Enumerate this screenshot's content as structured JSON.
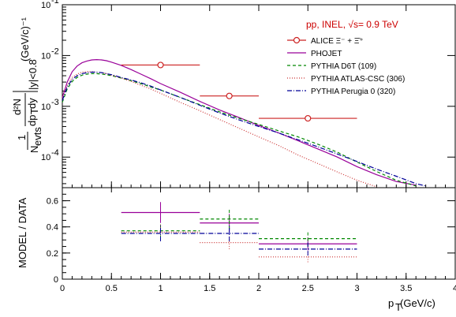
{
  "chart_data": [
    {
      "panel": "top",
      "type": "line",
      "scale": "log",
      "annotation": "pp, INEL, √s= 0.9 TeV",
      "ylabel_frac": "1/Nevts d²N/dpTdy",
      "ylabel_sub": "|y|<0.8",
      "ylabel_unit": "(GeV/c)⁻¹",
      "xlim": [
        0,
        4
      ],
      "ylim": [
        2.5e-05,
        0.1
      ],
      "xticks": [
        0,
        0.5,
        1,
        1.5,
        2,
        2.5,
        3,
        3.5,
        4
      ],
      "yticks": [
        {
          "v": 0.1,
          "base": "10",
          "exp": "-1"
        },
        {
          "v": 0.01,
          "base": "10",
          "exp": "-2"
        },
        {
          "v": 0.001,
          "base": "10",
          "exp": "-3"
        },
        {
          "v": 0.0001,
          "base": "10",
          "exp": "-4"
        }
      ],
      "legend": {
        "position": "top-right",
        "items": [
          {
            "name": "ALICE Ξ⁻ + Ξ̄⁺",
            "color": "#cc2222",
            "style": "solid-marker"
          },
          {
            "name": "PHOJET",
            "color": "#990099",
            "style": "solid"
          },
          {
            "name": "PYTHIA D6T (109)",
            "color": "#008800",
            "style": "dashed"
          },
          {
            "name": "PYTHIA ATLAS-CSC (306)",
            "color": "#cc3333",
            "style": "dotted"
          },
          {
            "name": "PYTHIA Perugia 0 (320)",
            "color": "#000099",
            "style": "dashdot"
          }
        ]
      },
      "data_points": [
        {
          "x": 1.0,
          "xlow": 0.6,
          "xhigh": 1.4,
          "y": 0.0065
        },
        {
          "x": 1.7,
          "xlow": 1.4,
          "xhigh": 2.0,
          "y": 0.0016
        },
        {
          "x": 2.5,
          "xlow": 2.0,
          "xhigh": 3.0,
          "y": 0.00058
        }
      ],
      "series": [
        {
          "name": "PHOJET",
          "color": "#990099",
          "dash": "",
          "x": [
            0,
            0.05,
            0.1,
            0.15,
            0.2,
            0.25,
            0.3,
            0.35,
            0.4,
            0.45,
            0.5,
            0.6,
            0.7,
            0.8,
            0.9,
            1.0,
            1.2,
            1.4,
            1.6,
            1.8,
            2.0,
            2.2,
            2.4,
            2.6,
            2.8,
            3.0,
            3.2,
            3.4,
            3.6
          ],
          "y": [
            0.0015,
            0.003,
            0.0048,
            0.0062,
            0.0072,
            0.0078,
            0.0082,
            0.0083,
            0.0082,
            0.0079,
            0.0074,
            0.0064,
            0.0053,
            0.0043,
            0.0035,
            0.0028,
            0.0019,
            0.00125,
            0.00085,
            0.0006,
            0.00042,
            0.0003,
            0.00021,
            0.000145,
            0.0001,
            6.5e-05,
            4.5e-05,
            3.3e-05,
            2.8e-05
          ]
        },
        {
          "name": "PYTHIA D6T (109)",
          "color": "#008800",
          "dash": "4,3",
          "x": [
            0,
            0.05,
            0.1,
            0.15,
            0.2,
            0.25,
            0.3,
            0.35,
            0.4,
            0.45,
            0.5,
            0.6,
            0.7,
            0.8,
            0.9,
            1.0,
            1.2,
            1.4,
            1.6,
            1.8,
            2.0,
            2.2,
            2.4,
            2.6,
            2.8,
            3.0,
            3.2,
            3.4,
            3.6
          ],
          "y": [
            0.0012,
            0.0022,
            0.0031,
            0.0037,
            0.0041,
            0.0043,
            0.0044,
            0.0044,
            0.0043,
            0.0042,
            0.004,
            0.0036,
            0.0032,
            0.0028,
            0.0024,
            0.0021,
            0.0015,
            0.00108,
            0.00078,
            0.00058,
            0.00044,
            0.00033,
            0.00025,
            0.00018,
            0.000125,
            8e-05,
            5.2e-05,
            3.5e-05,
            2.7e-05
          ]
        },
        {
          "name": "PYTHIA ATLAS-CSC (306)",
          "color": "#cc3333",
          "dash": "1,2",
          "x": [
            0,
            0.05,
            0.1,
            0.15,
            0.2,
            0.25,
            0.3,
            0.35,
            0.4,
            0.45,
            0.5,
            0.6,
            0.7,
            0.8,
            0.9,
            1.0,
            1.2,
            1.4,
            1.6,
            1.8,
            2.0,
            2.2,
            2.4,
            2.6,
            2.8,
            3.0,
            3.2
          ],
          "y": [
            0.0014,
            0.0026,
            0.0037,
            0.0043,
            0.0047,
            0.0048,
            0.0048,
            0.0047,
            0.0046,
            0.0044,
            0.0041,
            0.0036,
            0.0031,
            0.0026,
            0.0022,
            0.0018,
            0.0012,
            0.00082,
            0.00055,
            0.00037,
            0.00025,
            0.00017,
            0.00011,
            7.5e-05,
            5.1e-05,
            3.5e-05,
            2.6e-05
          ]
        },
        {
          "name": "PYTHIA Perugia 0 (320)",
          "color": "#000099",
          "dash": "6,2,1,2",
          "x": [
            0,
            0.05,
            0.1,
            0.15,
            0.2,
            0.25,
            0.3,
            0.35,
            0.4,
            0.45,
            0.5,
            0.6,
            0.7,
            0.8,
            0.9,
            1.0,
            1.2,
            1.4,
            1.6,
            1.8,
            2.0,
            2.2,
            2.4,
            2.6,
            2.8,
            3.0,
            3.2,
            3.4,
            3.6,
            3.7
          ],
          "y": [
            0.0013,
            0.0024,
            0.0034,
            0.004,
            0.0044,
            0.0046,
            0.0047,
            0.0047,
            0.0046,
            0.0044,
            0.0042,
            0.0037,
            0.0033,
            0.0029,
            0.0025,
            0.0021,
            0.0015,
            0.00105,
            0.00074,
            0.00054,
            0.0004,
            0.0003,
            0.00022,
            0.00016,
            0.000115,
            8.2e-05,
            5.8e-05,
            4.2e-05,
            3e-05,
            2.7e-05
          ]
        }
      ]
    },
    {
      "panel": "bottom",
      "type": "scatter",
      "ylabel": "MODEL / DATA",
      "xlabel_main": "p",
      "xlabel_sub": "T",
      "xlabel_unit": " (GeV/c)",
      "xlim": [
        0,
        4
      ],
      "ylim": [
        0,
        0.7
      ],
      "xticks": [
        0,
        0.5,
        1,
        1.5,
        2,
        2.5,
        3,
        3.5,
        4
      ],
      "yticks": [
        0,
        0.2,
        0.4,
        0.6
      ],
      "ratios": [
        {
          "x": 1.0,
          "xlow": 0.6,
          "xhigh": 1.4,
          "values": [
            {
              "series": "PHOJET",
              "color": "#990099",
              "dash": "",
              "y": 0.51,
              "err": 0.08
            },
            {
              "series": "PYTHIA D6T (109)",
              "color": "#008800",
              "dash": "4,3",
              "y": 0.37,
              "err": 0.06
            },
            {
              "series": "PYTHIA ATLAS-CSC (306)",
              "color": "#cc3333",
              "dash": "1,2",
              "y": 0.36,
              "err": 0.06
            },
            {
              "series": "PYTHIA Perugia 0 (320)",
              "color": "#000099",
              "dash": "6,2,1,2",
              "y": 0.35,
              "err": 0.06
            }
          ]
        },
        {
          "x": 1.7,
          "xlow": 1.4,
          "xhigh": 2.0,
          "values": [
            {
              "series": "PHOJET",
              "color": "#990099",
              "dash": "",
              "y": 0.43,
              "err": 0.07
            },
            {
              "series": "PYTHIA D6T (109)",
              "color": "#008800",
              "dash": "4,3",
              "y": 0.46,
              "err": 0.08
            },
            {
              "series": "PYTHIA ATLAS-CSC (306)",
              "color": "#cc3333",
              "dash": "1,2",
              "y": 0.28,
              "err": 0.05
            },
            {
              "series": "PYTHIA Perugia 0 (320)",
              "color": "#000099",
              "dash": "6,2,1,2",
              "y": 0.35,
              "err": 0.06
            }
          ]
        },
        {
          "x": 2.5,
          "xlow": 2.0,
          "xhigh": 3.0,
          "values": [
            {
              "series": "PHOJET",
              "color": "#990099",
              "dash": "",
              "y": 0.27,
              "err": 0.05
            },
            {
              "series": "PYTHIA D6T (109)",
              "color": "#008800",
              "dash": "4,3",
              "y": 0.31,
              "err": 0.06
            },
            {
              "series": "PYTHIA ATLAS-CSC (306)",
              "color": "#cc3333",
              "dash": "1,2",
              "y": 0.17,
              "err": 0.04
            },
            {
              "series": "PYTHIA Perugia 0 (320)",
              "color": "#000099",
              "dash": "6,2,1,2",
              "y": 0.23,
              "err": 0.05
            }
          ]
        }
      ]
    }
  ]
}
